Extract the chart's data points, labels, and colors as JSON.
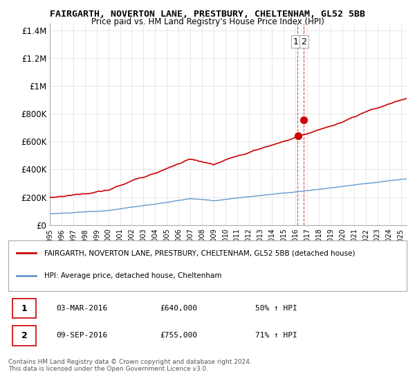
{
  "title1": "FAIRGARTH, NOVERTON LANE, PRESTBURY, CHELTENHAM, GL52 5BB",
  "title2": "Price paid vs. HM Land Registry's House Price Index (HPI)",
  "ylabel_ticks": [
    "£0",
    "£200K",
    "£400K",
    "£600K",
    "£800K",
    "£1M",
    "£1.2M",
    "£1.4M"
  ],
  "ylabel_values": [
    0,
    200000,
    400000,
    600000,
    800000,
    1000000,
    1200000,
    1400000
  ],
  "ylim": [
    0,
    1450000
  ],
  "xlim_start": 1995,
  "xlim_end": 2025.5,
  "sale1_date": "2016-03",
  "sale1_price": 640000,
  "sale1_label": "1",
  "sale2_date": "2016-09",
  "sale2_price": 755000,
  "sale2_label": "2",
  "legend_red": "FAIRGARTH, NOVERTON LANE, PRESTBURY, CHELTENHAM, GL52 5BB (detached house)",
  "legend_blue": "HPI: Average price, detached house, Cheltenham",
  "table_row1": [
    "1",
    "03-MAR-2016",
    "£640,000",
    "50% ↑ HPI"
  ],
  "table_row2": [
    "2",
    "09-SEP-2016",
    "£755,000",
    "71% ↑ HPI"
  ],
  "footer": "Contains HM Land Registry data © Crown copyright and database right 2024.\nThis data is licensed under the Open Government Licence v3.0.",
  "red_color": "#cc0000",
  "blue_color": "#6699cc",
  "dashed_color": "#cc0000",
  "background_color": "#ffffff",
  "grid_color": "#dddddd"
}
